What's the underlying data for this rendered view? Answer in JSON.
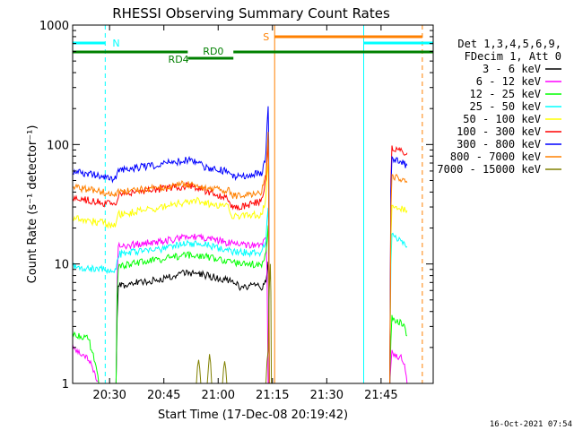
{
  "chart_data": {
    "type": "line",
    "title": "RHESSI Observing Summary Count Rates",
    "xlabel": "Start Time (17-Dec-08 20:19:42)",
    "ylabel": "Count Rate (s⁻¹ detector⁻¹)",
    "y_scale": "log",
    "xlim_min": [
      20.33,
      21.99
    ],
    "ylim": [
      1,
      1000
    ],
    "x_ticks": [
      {
        "min": 20.5,
        "label": "20:30"
      },
      {
        "min": 20.75,
        "label": "20:45"
      },
      {
        "min": 21.0,
        "label": "21:00"
      },
      {
        "min": 21.25,
        "label": "21:15"
      },
      {
        "min": 21.5,
        "label": "21:30"
      },
      {
        "min": 21.75,
        "label": "21:45"
      }
    ],
    "y_ticks": [
      {
        "v": 1,
        "label": "1"
      },
      {
        "v": 10,
        "label": "10"
      },
      {
        "v": 100,
        "label": "100"
      },
      {
        "v": 1000,
        "label": "1000"
      }
    ],
    "legend_header": [
      "Det 1,3,4,5,6,9,",
      "FDecim 1, Att 0"
    ],
    "series": [
      {
        "name": "3 - 6 keV",
        "color": "#000000",
        "values": [
          [
            20.33,
            1.0
          ],
          [
            20.53,
            1.0
          ],
          [
            20.54,
            6.5
          ],
          [
            20.6,
            7
          ],
          [
            20.75,
            7.5
          ],
          [
            20.85,
            8.5
          ],
          [
            20.95,
            8
          ],
          [
            21.05,
            7.2
          ],
          [
            21.1,
            6.5
          ],
          [
            21.2,
            6.5
          ],
          [
            21.22,
            7
          ],
          [
            21.23,
            10
          ],
          [
            21.235,
            1.0
          ]
        ]
      },
      {
        "name": "6 - 12 keV",
        "color": "#ff00ff",
        "values": [
          [
            20.33,
            2.0
          ],
          [
            20.4,
            1.6
          ],
          [
            20.45,
            1.0
          ],
          [
            20.53,
            1.0
          ],
          [
            20.54,
            14
          ],
          [
            20.6,
            14.5
          ],
          [
            20.75,
            15.5
          ],
          [
            20.85,
            17
          ],
          [
            20.95,
            16.5
          ],
          [
            21.05,
            15
          ],
          [
            21.1,
            14.5
          ],
          [
            21.2,
            14.5
          ],
          [
            21.22,
            16
          ],
          [
            21.23,
            1.0
          ],
          [
            21.79,
            1.0
          ],
          [
            21.8,
            1.8
          ],
          [
            21.85,
            1.6
          ],
          [
            21.87,
            1.0
          ]
        ]
      },
      {
        "name": "12 - 25 keV",
        "color": "#00ff00",
        "values": [
          [
            20.33,
            2.6
          ],
          [
            20.4,
            2.4
          ],
          [
            20.45,
            1.0
          ],
          [
            20.53,
            1.0
          ],
          [
            20.54,
            9.5
          ],
          [
            20.6,
            10
          ],
          [
            20.75,
            11
          ],
          [
            20.85,
            12
          ],
          [
            20.95,
            11.5
          ],
          [
            21.05,
            10.5
          ],
          [
            21.1,
            10
          ],
          [
            21.2,
            10
          ],
          [
            21.22,
            12
          ],
          [
            21.23,
            20
          ],
          [
            21.235,
            1.0
          ],
          [
            21.79,
            1.0
          ],
          [
            21.8,
            3.5
          ],
          [
            21.85,
            3.2
          ],
          [
            21.87,
            2.5
          ]
        ]
      },
      {
        "name": "25 - 50 keV",
        "color": "#00ffff",
        "values": [
          [
            20.33,
            9.5
          ],
          [
            20.45,
            9
          ],
          [
            20.53,
            9
          ],
          [
            20.54,
            12
          ],
          [
            20.6,
            12.5
          ],
          [
            20.75,
            13.5
          ],
          [
            20.85,
            15
          ],
          [
            20.95,
            14.5
          ],
          [
            21.05,
            13
          ],
          [
            21.1,
            12.5
          ],
          [
            21.2,
            12.5
          ],
          [
            21.22,
            15
          ],
          [
            21.23,
            30
          ],
          [
            21.235,
            1.0
          ],
          [
            21.79,
            1.0
          ],
          [
            21.8,
            18
          ],
          [
            21.85,
            15
          ],
          [
            21.87,
            14
          ]
        ]
      },
      {
        "name": "50 - 100 keV",
        "color": "#ffff00",
        "values": [
          [
            20.33,
            24
          ],
          [
            20.45,
            22.5
          ],
          [
            20.53,
            21
          ],
          [
            20.54,
            26
          ],
          [
            20.6,
            27
          ],
          [
            20.75,
            30
          ],
          [
            20.85,
            33
          ],
          [
            20.9,
            34
          ],
          [
            20.95,
            32
          ],
          [
            21.0,
            31
          ],
          [
            21.05,
            30
          ],
          [
            21.06,
            25
          ],
          [
            21.1,
            25
          ],
          [
            21.2,
            26
          ],
          [
            21.22,
            35
          ],
          [
            21.23,
            70
          ],
          [
            21.235,
            1.0
          ],
          [
            21.79,
            1.0
          ],
          [
            21.8,
            32
          ],
          [
            21.85,
            29
          ],
          [
            21.87,
            28
          ]
        ]
      },
      {
        "name": "100 - 300 keV",
        "color": "#ff0000",
        "values": [
          [
            20.33,
            36
          ],
          [
            20.45,
            33
          ],
          [
            20.53,
            31
          ],
          [
            20.54,
            38
          ],
          [
            20.6,
            39
          ],
          [
            20.75,
            43
          ],
          [
            20.85,
            45
          ],
          [
            20.9,
            44
          ],
          [
            20.95,
            40
          ],
          [
            21.0,
            38
          ],
          [
            21.05,
            35
          ],
          [
            21.06,
            31
          ],
          [
            21.1,
            30
          ],
          [
            21.2,
            34
          ],
          [
            21.22,
            50
          ],
          [
            21.23,
            100
          ],
          [
            21.235,
            1.0
          ],
          [
            21.79,
            1.0
          ],
          [
            21.8,
            95
          ],
          [
            21.85,
            88
          ],
          [
            21.87,
            85
          ]
        ]
      },
      {
        "name": "300 - 800 keV",
        "color": "#0000ff",
        "values": [
          [
            20.33,
            60
          ],
          [
            20.45,
            55
          ],
          [
            20.53,
            51
          ],
          [
            20.54,
            60
          ],
          [
            20.6,
            63
          ],
          [
            20.75,
            69
          ],
          [
            20.85,
            74
          ],
          [
            20.9,
            72
          ],
          [
            20.95,
            63
          ],
          [
            21.0,
            62
          ],
          [
            21.05,
            59
          ],
          [
            21.06,
            55
          ],
          [
            21.1,
            54
          ],
          [
            21.2,
            58
          ],
          [
            21.22,
            80
          ],
          [
            21.23,
            200
          ],
          [
            21.235,
            1.0
          ],
          [
            21.79,
            1.0
          ],
          [
            21.8,
            75
          ],
          [
            21.85,
            70
          ],
          [
            21.87,
            67
          ]
        ]
      },
      {
        "name": "800 - 7000 keV",
        "color": "#ff8000",
        "values": [
          [
            20.33,
            44
          ],
          [
            20.45,
            41
          ],
          [
            20.53,
            38
          ],
          [
            20.54,
            40
          ],
          [
            20.6,
            41
          ],
          [
            20.75,
            44
          ],
          [
            20.85,
            47
          ],
          [
            20.9,
            45
          ],
          [
            20.95,
            43
          ],
          [
            21.0,
            42
          ],
          [
            21.05,
            41
          ],
          [
            21.06,
            38
          ],
          [
            21.1,
            37
          ],
          [
            21.2,
            40
          ],
          [
            21.22,
            55
          ],
          [
            21.23,
            120
          ],
          [
            21.235,
            1.0
          ],
          [
            21.79,
            1.0
          ],
          [
            21.8,
            55
          ],
          [
            21.85,
            50
          ],
          [
            21.87,
            48
          ]
        ]
      },
      {
        "name": "7000 - 15000 keV",
        "color": "#808000",
        "values": [
          [
            20.9,
            1.0
          ],
          [
            20.91,
            1.6
          ],
          [
            20.92,
            1.0
          ],
          [
            20.95,
            1.0
          ],
          [
            20.96,
            1.8
          ],
          [
            20.97,
            1.0
          ],
          [
            21.02,
            1.0
          ],
          [
            21.03,
            1.5
          ],
          [
            21.04,
            1.0
          ],
          [
            21.22,
            1.0
          ],
          [
            21.23,
            2.0
          ],
          [
            21.24,
            10
          ],
          [
            21.245,
            1.0
          ]
        ]
      }
    ],
    "annotations": [
      {
        "text": "N",
        "color": "#00ffff",
        "x_min": 20.48
      },
      {
        "text": "S",
        "color": "#ff8000",
        "x_min": 21.26
      },
      {
        "text": "RD0",
        "color": "#008000"
      },
      {
        "text": "RD4",
        "color": "#008000"
      }
    ],
    "grid": false,
    "legend_position": "right"
  },
  "footer": {
    "date": "16-Oct-2021 07:54"
  }
}
